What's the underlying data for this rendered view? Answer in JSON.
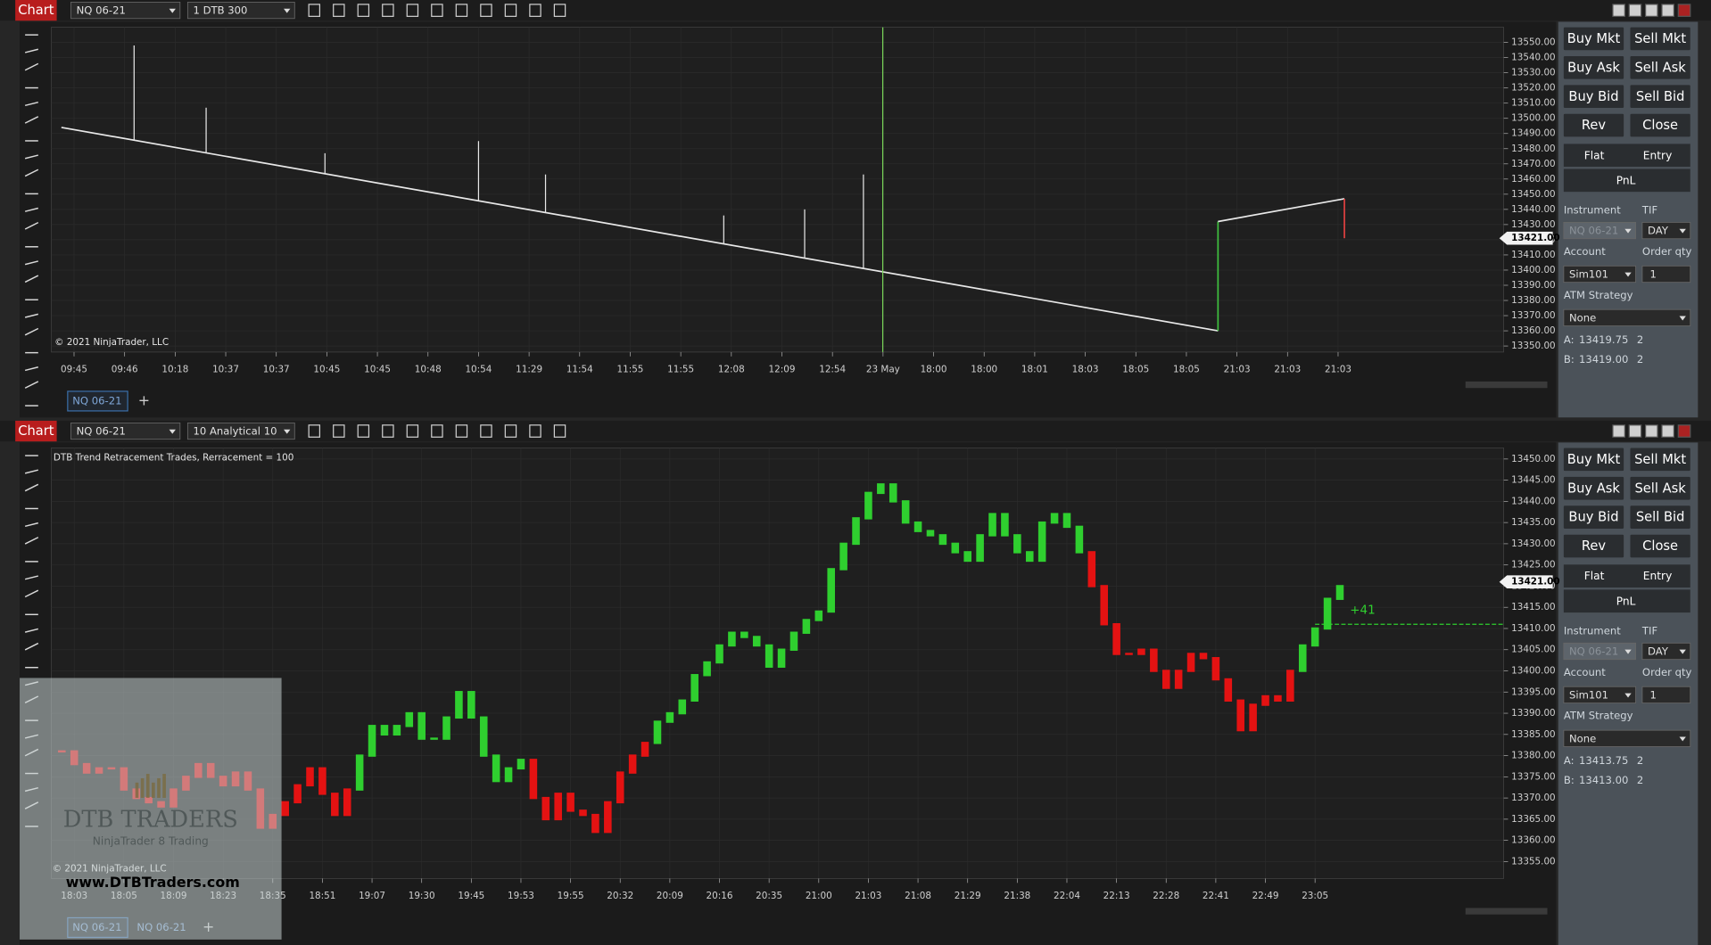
{
  "windows": [
    {
      "title": "Chart",
      "instrument": "NQ 06-21",
      "period": "1 DTB 300",
      "copyright": "© 2021 NinjaTrader, LLC",
      "tabs": [
        "NQ 06-21"
      ],
      "add_tab": "+",
      "chart": {
        "type": "line",
        "xlim": [
          -3.6,
          226.2
        ],
        "ylim": [
          13346,
          13560
        ],
        "xticks": [
          {
            "value": 0,
            "label": "09:45"
          },
          {
            "value": 8,
            "label": "09:46"
          },
          {
            "value": 16,
            "label": "10:18"
          },
          {
            "value": 24,
            "label": "10:37"
          },
          {
            "value": 32,
            "label": "10:37"
          },
          {
            "value": 40,
            "label": "10:45"
          },
          {
            "value": 48,
            "label": "10:45"
          },
          {
            "value": 56,
            "label": "10:48"
          },
          {
            "value": 64,
            "label": "10:54"
          },
          {
            "value": 72,
            "label": "11:29"
          },
          {
            "value": 80,
            "label": "11:54"
          },
          {
            "value": 88,
            "label": "11:55"
          },
          {
            "value": 96,
            "label": "11:55"
          },
          {
            "value": 104,
            "label": "12:08"
          },
          {
            "value": 112,
            "label": "12:09"
          },
          {
            "value": 120,
            "label": "12:54"
          },
          {
            "value": 128,
            "label": "23 May"
          },
          {
            "value": 136,
            "label": "18:00"
          },
          {
            "value": 144,
            "label": "18:00"
          },
          {
            "value": 152,
            "label": "18:01"
          },
          {
            "value": 160,
            "label": "18:03"
          },
          {
            "value": 168,
            "label": "18:05"
          },
          {
            "value": 176,
            "label": "18:05"
          },
          {
            "value": 184,
            "label": "21:03"
          },
          {
            "value": 192,
            "label": "21:03"
          },
          {
            "value": 200,
            "label": "21:03"
          }
        ],
        "yticks": [
          {
            "value": 13350,
            "label": "13350.00"
          },
          {
            "value": 13360,
            "label": "13360.00"
          },
          {
            "value": 13370,
            "label": "13370.00"
          },
          {
            "value": 13380,
            "label": "13380.00"
          },
          {
            "value": 13390,
            "label": "13390.00"
          },
          {
            "value": 13400,
            "label": "13400.00"
          },
          {
            "value": 13410,
            "label": "13410.00"
          },
          {
            "value": 13420,
            "label": "13420.00"
          },
          {
            "value": 13430,
            "label": "13430.00"
          },
          {
            "value": 13440,
            "label": "13440.00"
          },
          {
            "value": 13450,
            "label": "13450.00"
          },
          {
            "value": 13460,
            "label": "13460.00"
          },
          {
            "value": 13470,
            "label": "13470.00"
          },
          {
            "value": 13480,
            "label": "13480.00"
          },
          {
            "value": 13490,
            "label": "13490.00"
          },
          {
            "value": 13500,
            "label": "13500.00"
          },
          {
            "value": 13510,
            "label": "13510.00"
          },
          {
            "value": 13520,
            "label": "13520.00"
          },
          {
            "value": 13530,
            "label": "13530.00"
          },
          {
            "value": 13540,
            "label": "13540.00"
          },
          {
            "value": 13550,
            "label": "13550.00"
          }
        ],
        "series": [
          {
            "color": "#e8e8e8",
            "x": [
              -2,
              181
            ],
            "values": [
              13494,
              13360
            ]
          },
          {
            "color": "#3fbf3f",
            "x": [
              181,
              181
            ],
            "values": [
              13360,
              13432
            ]
          },
          {
            "color": "#e8e8e8",
            "x": [
              181,
              201
            ],
            "values": [
              13432,
              13447
            ]
          },
          {
            "color": "#e04040",
            "x": [
              201,
              201
            ],
            "values": [
              13447,
              13421
            ]
          }
        ],
        "spikes": {
          "x": [
            9.5,
            20.9,
            39.7,
            64,
            74.6,
            102.8,
            115.6,
            124.9
          ],
          "values": [
            13548,
            13507,
            13477,
            13485,
            13463,
            13436,
            13440,
            13463
          ]
        },
        "price_marker": {
          "value": 13421,
          "label": "13421.00"
        }
      },
      "order_panel": {
        "buttons": [
          "Buy Mkt",
          "Sell Mkt",
          "Buy Ask",
          "Sell Ask",
          "Buy Bid",
          "Sell Bid",
          "Rev",
          "Close"
        ],
        "flat": "Flat",
        "entry": "Entry",
        "pnl": "PnL",
        "instrument_label": "Instrument",
        "instrument": "NQ 06-21",
        "tif_label": "TIF",
        "tif": "DAY",
        "account_label": "Account",
        "account": "Sim101",
        "qty_label": "Order qty",
        "qty": 1,
        "atm_label": "ATM Strategy",
        "atm": "None",
        "ask": {
          "label": "A:",
          "price": "13419.75",
          "size": 2
        },
        "bid": {
          "label": "B:",
          "price": "13419.00",
          "size": 2
        }
      }
    },
    {
      "title": "Chart",
      "instrument": "NQ 06-21",
      "period": "10 Analytical 10",
      "indicator": "DTB Trend Retracement Trades, Rerracement = 100",
      "copyright": "© 2021 NinjaTrader, LLC",
      "tabs": [
        "NQ 06-21",
        "NQ 06-21"
      ],
      "add_tab": "+",
      "watermark": {
        "brand": "DTB TRADERS",
        "tagline": "NinjaTrader 8 Trading",
        "url": "www.DTBTraders.com"
      },
      "chart": {
        "type": "renko",
        "xlim": [
          -1.85,
          115.2
        ],
        "ylim": [
          13351,
          13452.6
        ],
        "xticks": [
          {
            "value": 0,
            "label": "18:03"
          },
          {
            "value": 4,
            "label": "18:05"
          },
          {
            "value": 8,
            "label": "18:09"
          },
          {
            "value": 12,
            "label": "18:23"
          },
          {
            "value": 16,
            "label": "18:35"
          },
          {
            "value": 20,
            "label": "18:51"
          },
          {
            "value": 24,
            "label": "19:07"
          },
          {
            "value": 28,
            "label": "19:30"
          },
          {
            "value": 32,
            "label": "19:45"
          },
          {
            "value": 36,
            "label": "19:53"
          },
          {
            "value": 40,
            "label": "19:55"
          },
          {
            "value": 44,
            "label": "20:32"
          },
          {
            "value": 48,
            "label": "20:09"
          },
          {
            "value": 52,
            "label": "20:16"
          },
          {
            "value": 56,
            "label": "20:35"
          },
          {
            "value": 60,
            "label": "21:00"
          },
          {
            "value": 64,
            "label": "21:03"
          },
          {
            "value": 68,
            "label": "21:08"
          },
          {
            "value": 72,
            "label": "21:29"
          },
          {
            "value": 76,
            "label": "21:38"
          },
          {
            "value": 80,
            "label": "22:04"
          },
          {
            "value": 84,
            "label": "22:13"
          },
          {
            "value": 88,
            "label": "22:28"
          },
          {
            "value": 92,
            "label": "22:41"
          },
          {
            "value": 96,
            "label": "22:49"
          },
          {
            "value": 100,
            "label": "23:05"
          }
        ],
        "yticks": [
          {
            "value": 13355,
            "label": "13355.00"
          },
          {
            "value": 13360,
            "label": "13360.00"
          },
          {
            "value": 13365,
            "label": "13365.00"
          },
          {
            "value": 13370,
            "label": "13370.00"
          },
          {
            "value": 13375,
            "label": "13375.00"
          },
          {
            "value": 13380,
            "label": "13380.00"
          },
          {
            "value": 13385,
            "label": "13385.00"
          },
          {
            "value": 13390,
            "label": "13390.00"
          },
          {
            "value": 13395,
            "label": "13395.00"
          },
          {
            "value": 13400,
            "label": "13400.00"
          },
          {
            "value": 13405,
            "label": "13405.00"
          },
          {
            "value": 13410,
            "label": "13410.00"
          },
          {
            "value": 13415,
            "label": "13415.00"
          },
          {
            "value": 13420,
            "label": "13420.00"
          },
          {
            "value": 13425,
            "label": "13425.00"
          },
          {
            "value": 13430,
            "label": "13430.00"
          },
          {
            "value": 13435,
            "label": "13435.00"
          },
          {
            "value": 13440,
            "label": "13440.00"
          },
          {
            "value": 13445,
            "label": "13445.00"
          },
          {
            "value": 13450,
            "label": "13450.00"
          }
        ],
        "x": [
          -1,
          0,
          1,
          2,
          3,
          4,
          5,
          6,
          7,
          8,
          9,
          10,
          11,
          12,
          13,
          14,
          15,
          16,
          17,
          18,
          19,
          20,
          21,
          22,
          23,
          24,
          25,
          26,
          27,
          28,
          29,
          30,
          31,
          32,
          33,
          34,
          35,
          36,
          37,
          38,
          39,
          40,
          41,
          42,
          43,
          44,
          45,
          46,
          47,
          48,
          49,
          50,
          51,
          52,
          53,
          54,
          55,
          56,
          57,
          58,
          59,
          60,
          61,
          62,
          63,
          64,
          65,
          66,
          67,
          68,
          69,
          70,
          71,
          72,
          73,
          74,
          75,
          76,
          77,
          78,
          79,
          80,
          81,
          82,
          83,
          84,
          85,
          86,
          87,
          88,
          89,
          90,
          91,
          92,
          93,
          94,
          95,
          96,
          97,
          98,
          99,
          100,
          101,
          102
        ],
        "series": [
          {
            "color": "#2fcf2f",
            "values": [
              null,
              null,
              null,
              null,
              null,
              null,
              null,
              null,
              null,
              null,
              null,
              null,
              null,
              null,
              null,
              null,
              null,
              null,
              null,
              null,
              null,
              null,
              null,
              null,
              13380,
              13387,
              13385,
              13387,
              13390,
              13384,
              13384,
              13389,
              13395,
              13389,
              13380,
              13374,
              13377,
              13379,
              null,
              null,
              null,
              null,
              null,
              null,
              null,
              null,
              null,
              null,
              13388,
              13390,
              13393,
              13399,
              13402,
              13406,
              13409,
              13408,
              13406,
              13401,
              13405,
              13409,
              13412,
              13414,
              13424,
              13430,
              13436,
              13442,
              13444,
              13440,
              13435,
              13433,
              13432,
              13430,
              13428,
              13426,
              13432,
              13437,
              13432,
              13428,
              13426,
              13435,
              13437,
              13434,
              13428,
              null,
              null,
              null,
              null,
              null,
              null,
              null,
              null,
              null,
              null,
              null,
              null,
              null,
              null,
              null,
              null,
              null,
              13406,
              13410,
              13417,
              13420
            ]
          },
          {
            "color": "#e41212",
            "values": [
              13381,
              13378,
              13376,
              13377,
              13377,
              13372,
              13370,
              13369,
              13368,
              13372,
              13375,
              13378,
              13375,
              13373,
              13376,
              13372,
              13363,
              13366,
              13369,
              13373,
              13377,
              13371,
              13366,
              13372,
              null,
              null,
              null,
              null,
              null,
              null,
              null,
              null,
              null,
              null,
              null,
              null,
              null,
              null,
              13370,
              13365,
              13371,
              13367,
              13366,
              13362,
              13369,
              13376,
              13380,
              13383,
              null,
              null,
              null,
              null,
              null,
              null,
              null,
              null,
              null,
              null,
              null,
              null,
              null,
              null,
              null,
              null,
              null,
              null,
              null,
              null,
              null,
              null,
              null,
              null,
              null,
              null,
              null,
              null,
              null,
              null,
              null,
              null,
              null,
              null,
              null,
              13420,
              13411,
              13404,
              13404,
              13405,
              13400,
              13396,
              13400,
              13404,
              13403,
              13398,
              13393,
              13386,
              13392,
              13394,
              13393,
              13400,
              null,
              null,
              null,
              null
            ]
          }
        ],
        "trade": {
          "label": "+41",
          "price": 13411,
          "x": 100
        },
        "price_marker": {
          "value": 13421,
          "label": "13421.00"
        }
      },
      "order_panel": {
        "buttons": [
          "Buy Mkt",
          "Sell Mkt",
          "Buy Ask",
          "Sell Ask",
          "Buy Bid",
          "Sell Bid",
          "Rev",
          "Close"
        ],
        "flat": "Flat",
        "entry": "Entry",
        "pnl": "PnL",
        "instrument_label": "Instrument",
        "instrument": "NQ 06-21",
        "tif_label": "TIF",
        "tif": "DAY",
        "account_label": "Account",
        "account": "Sim101",
        "qty_label": "Order qty",
        "qty": 1,
        "atm_label": "ATM Strategy",
        "atm": "None",
        "ask": {
          "label": "A:",
          "price": "13413.75",
          "size": 2
        },
        "bid": {
          "label": "B:",
          "price": "13413.00",
          "size": 2
        }
      }
    }
  ]
}
